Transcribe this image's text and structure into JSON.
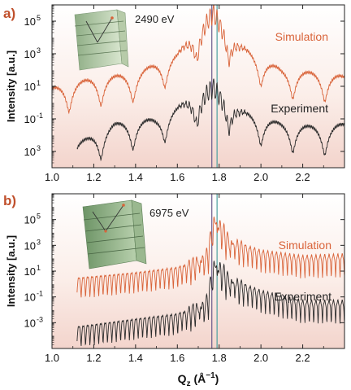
{
  "chart_data": [
    {
      "panel": "a)",
      "type": "line",
      "energy_label": "2490 eV",
      "ylabel": "Intensity [a.u.]",
      "xlim": [
        1.0,
        2.4
      ],
      "ylim_log10": [
        -4,
        6
      ],
      "x_ticks": [
        "1.0",
        "1.2",
        "1.4",
        "1.6",
        "1.8",
        "2.0",
        "2.2"
      ],
      "x_tick_values": [
        1.0,
        1.2,
        1.4,
        1.6,
        1.8,
        2.0,
        2.2
      ],
      "y_ticks": [
        {
          "base": "10",
          "exp": "5",
          "log": 5
        },
        {
          "base": "10",
          "exp": "3",
          "log": 3
        },
        {
          "base": "10",
          "exp": "1",
          "log": 1
        },
        {
          "base": "10",
          "exp": "-1",
          "log": -1
        },
        {
          "base": "10",
          "exp": " 3",
          "log": -3
        }
      ],
      "series": [
        {
          "name": "Simulation",
          "color": "#d9643a",
          "x_range": [
            1.0,
            2.4
          ],
          "fringe_period": 0.153,
          "peak_x": 1.77,
          "peak_intensity": 300000,
          "baseline_intensity": 0.8,
          "envelope_points": [
            [
              1.0,
              8
            ],
            [
              1.2,
              30
            ],
            [
              1.4,
              60
            ],
            [
              1.6,
              1000
            ],
            [
              1.77,
              300000
            ],
            [
              1.9,
              3000
            ],
            [
              2.1,
              100
            ],
            [
              2.3,
              60
            ],
            [
              2.4,
              40
            ]
          ]
        },
        {
          "name": "Experiment",
          "color": "#2b2b2b",
          "x_range": [
            1.12,
            2.4
          ],
          "fringe_period": 0.153,
          "peak_x": 1.77,
          "peak_intensity": 8,
          "baseline_intensity": 0.001,
          "envelope_points": [
            [
              1.12,
              0.003
            ],
            [
              1.3,
              0.05
            ],
            [
              1.5,
              0.1
            ],
            [
              1.77,
              8
            ],
            [
              1.9,
              0.3
            ],
            [
              2.1,
              0.05
            ],
            [
              2.3,
              0.03
            ],
            [
              2.4,
              0.05
            ]
          ]
        }
      ],
      "vertical_lines": [
        {
          "x": 1.765,
          "color": "#6a5a8c"
        },
        {
          "x": 1.79,
          "color": "#4aa0a0"
        }
      ]
    },
    {
      "panel": "b)",
      "type": "line",
      "energy_label": "6975 eV",
      "ylabel": "Intensity [a.u.]",
      "xlabel": "Q",
      "xlabel_sub": "z",
      "xlabel_unit": " (Å",
      "xlabel_unit_exp": "−1",
      "xlabel_close": ")",
      "xlim": [
        1.0,
        2.4
      ],
      "ylim_log10": [
        -5,
        7
      ],
      "x_ticks": [
        "1.0",
        "1.2",
        "1.4",
        "1.6",
        "1.8",
        "2.0",
        "2.2"
      ],
      "x_tick_values": [
        1.0,
        1.2,
        1.4,
        1.6,
        1.8,
        2.0,
        2.2
      ],
      "y_ticks": [
        {
          "base": "10",
          "exp": "5",
          "log": 5
        },
        {
          "base": "10",
          "exp": "3",
          "log": 3
        },
        {
          "base": "10",
          "exp": "1",
          "log": 1
        },
        {
          "base": "10",
          "exp": "-1",
          "log": -1
        },
        {
          "base": "10",
          "exp": "-3",
          "log": -3
        }
      ],
      "series": [
        {
          "name": "Simulation",
          "color": "#d9643a",
          "x_range": [
            1.12,
            2.4
          ],
          "fringe_period": 0.021,
          "peak_x": 1.78,
          "peak_intensity": 200000,
          "baseline_intensity": 3,
          "envelope_points": [
            [
              1.12,
              3
            ],
            [
              1.4,
              8
            ],
            [
              1.6,
              20
            ],
            [
              1.74,
              200
            ],
            [
              1.78,
              200000
            ],
            [
              1.85,
              3000
            ],
            [
              2.0,
              400
            ],
            [
              2.2,
              150
            ],
            [
              2.4,
              200
            ]
          ]
        },
        {
          "name": "Experiment",
          "color": "#2b2b2b",
          "x_range": [
            1.12,
            2.4
          ],
          "fringe_period": 0.021,
          "peak_x": 1.78,
          "peak_intensity": 80,
          "baseline_intensity": 0.0005,
          "envelope_points": [
            [
              1.12,
              0.0005
            ],
            [
              1.4,
              0.002
            ],
            [
              1.6,
              0.005
            ],
            [
              1.74,
              0.05
            ],
            [
              1.78,
              80
            ],
            [
              1.85,
              3
            ],
            [
              2.0,
              0.3
            ],
            [
              2.2,
              0.05
            ],
            [
              2.4,
              0.05
            ]
          ]
        }
      ],
      "vertical_lines": [
        {
          "x": 1.765,
          "color": "#6a5a8c"
        },
        {
          "x": 1.79,
          "color": "#4aa0a0"
        }
      ]
    }
  ]
}
